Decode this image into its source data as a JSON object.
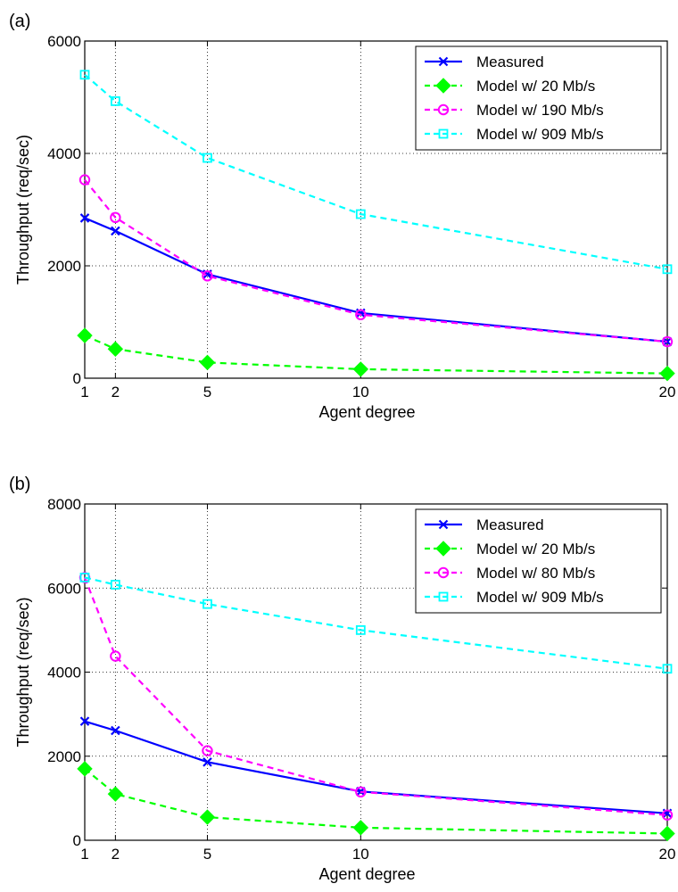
{
  "chart_data": [
    {
      "type": "line",
      "panel_label": "(a)",
      "xlabel": "Agent degree",
      "ylabel": "Throughput (req/sec)",
      "x": [
        1,
        2,
        5,
        10,
        20
      ],
      "x_ticks": [
        "1",
        "2",
        "5",
        "10",
        "20"
      ],
      "xlim": [
        1,
        20
      ],
      "ylim": [
        0,
        6000
      ],
      "y_ticks": [
        "0",
        "2000",
        "4000",
        "6000"
      ],
      "grid": "dotted vertical and horizontal",
      "legend_position": "top-right",
      "series": [
        {
          "name": "Measured",
          "color": "#0000ff",
          "marker": "x",
          "dash": "solid",
          "values": [
            2850,
            2620,
            1850,
            1160,
            650
          ]
        },
        {
          "name": "Model w/ 20 Mb/s",
          "color": "#00ff00",
          "marker": "diamond",
          "dash": "dashed",
          "values": [
            760,
            520,
            280,
            160,
            85
          ]
        },
        {
          "name": "Model w/ 190 Mb/s",
          "color": "#ff00ff",
          "marker": "circle",
          "dash": "dashed",
          "values": [
            3530,
            2860,
            1820,
            1130,
            650
          ]
        },
        {
          "name": "Model w/ 909 Mb/s",
          "color": "#00ffff",
          "marker": "square",
          "dash": "dashed",
          "values": [
            5400,
            4930,
            3920,
            2920,
            1940
          ]
        }
      ]
    },
    {
      "type": "line",
      "panel_label": "(b)",
      "xlabel": "Agent degree",
      "ylabel": "Throughput (req/sec)",
      "x": [
        1,
        2,
        5,
        10,
        20
      ],
      "x_ticks": [
        "1",
        "2",
        "5",
        "10",
        "20"
      ],
      "xlim": [
        1,
        20
      ],
      "ylim": [
        0,
        8000
      ],
      "y_ticks": [
        "0",
        "2000",
        "4000",
        "6000",
        "8000"
      ],
      "grid": "dotted vertical and horizontal",
      "legend_position": "top-right",
      "series": [
        {
          "name": "Measured",
          "color": "#0000ff",
          "marker": "x",
          "dash": "solid",
          "values": [
            2830,
            2610,
            1860,
            1160,
            640
          ]
        },
        {
          "name": "Model w/ 20 Mb/s",
          "color": "#00ff00",
          "marker": "diamond",
          "dash": "dashed",
          "values": [
            1700,
            1100,
            550,
            300,
            160
          ]
        },
        {
          "name": "Model w/ 80 Mb/s",
          "color": "#ff00ff",
          "marker": "circle",
          "dash": "dashed",
          "values": [
            6250,
            4380,
            2130,
            1150,
            600
          ]
        },
        {
          "name": "Model w/ 909 Mb/s",
          "color": "#00ffff",
          "marker": "square",
          "dash": "dashed",
          "values": [
            6250,
            6080,
            5620,
            5000,
            4080
          ]
        }
      ]
    }
  ]
}
